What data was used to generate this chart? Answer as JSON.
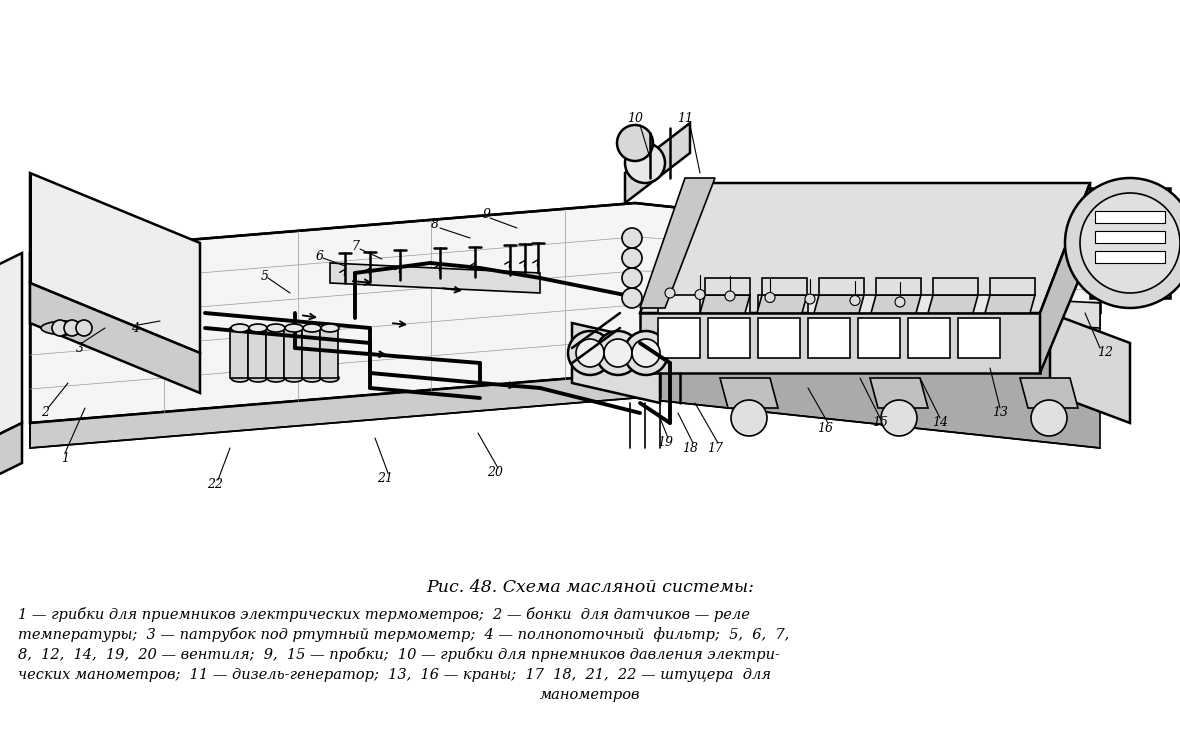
{
  "title": "Рис. 48. Схема масляной системы:",
  "caption_lines": [
    "1 — грибки для приемников электрических термометров;  2 — бонки  для датчиков — реле",
    "температуры;  3 — патрубок под ртутный термометр;  4 — полнопоточный  фильтр;  5,  6,  7,",
    "8,  12,  14,  19,  20 — вентиля;  9,  15 — пробки;  10 — грибки для прнемников давления электри-",
    "ческих манометров;  11 — дизель-генератор;  13,  16 — краны;  17  18,  21,  22 — штуцера  для",
    "манометров"
  ],
  "bg_color": "#ffffff",
  "text_color": "#000000",
  "title_fontsize": 12.5,
  "caption_fontsize": 10.5,
  "fig_width": 11.8,
  "fig_height": 7.43,
  "dpi": 100
}
